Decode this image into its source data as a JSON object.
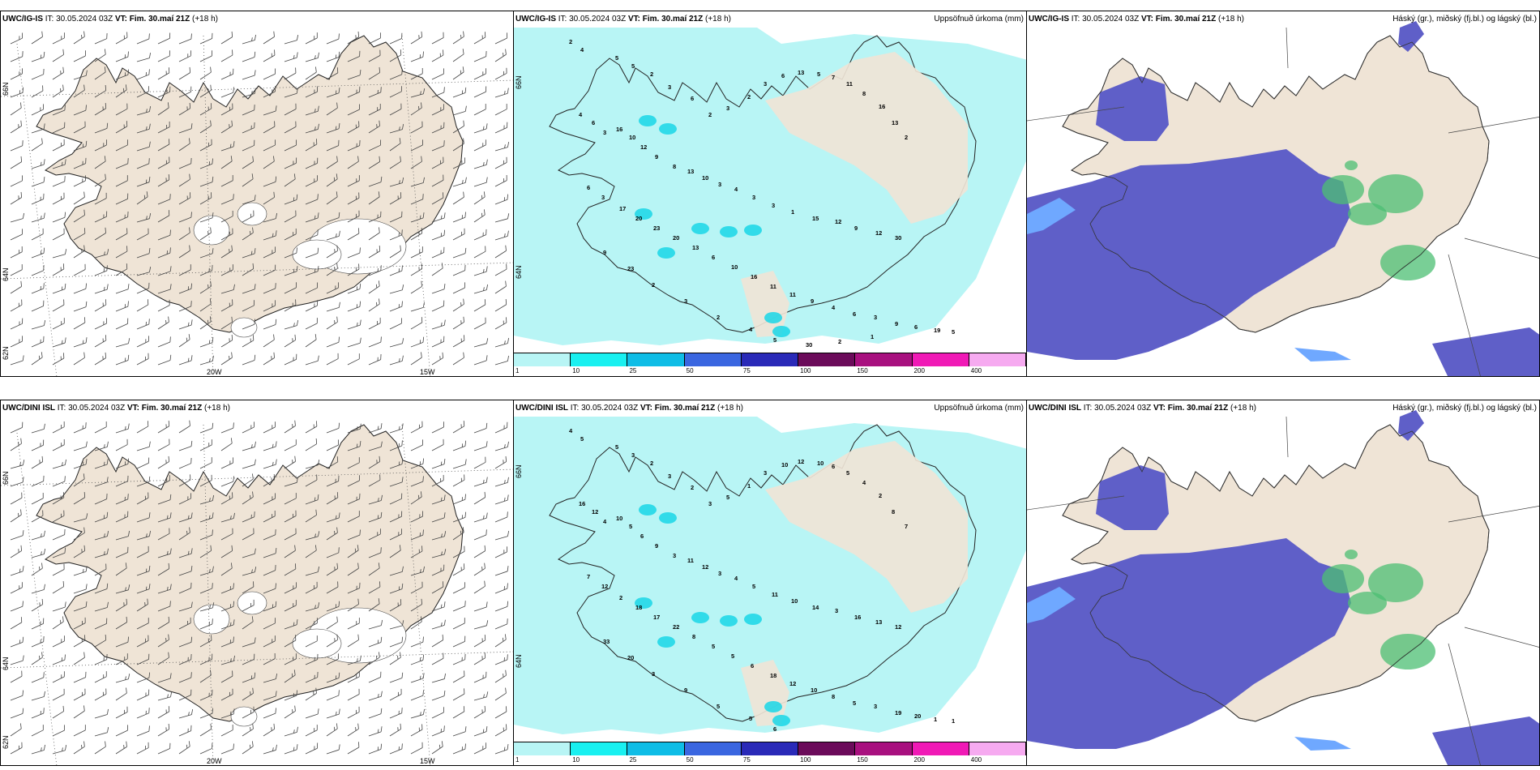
{
  "panels": {
    "top": {
      "model": "UWC/IG-IS",
      "it_label": "IT:",
      "it_value": "30.05.2024 03Z",
      "vt_label": "VT:",
      "vt_value": "Fim. 30.maí 21Z",
      "lead": "(+18 h)"
    },
    "bottom": {
      "model": "UWC/DINI ISL",
      "it_label": "IT:",
      "it_value": "30.05.2024 03Z",
      "vt_label": "VT:",
      "vt_value": "Fim. 30.maí 21Z",
      "lead": "(+18 h)"
    }
  },
  "precip_title": "Uppsöfnuð úrkoma (mm)",
  "cloud_title": "Háský (gr.), miðský (fj.bl.) og lágský (bl.)",
  "wind_axis": {
    "lon_labels": [
      "20W",
      "15W"
    ],
    "lat_labels": [
      "66N",
      "64N",
      "62N"
    ]
  },
  "precip_axis": {
    "lat_labels": [
      "66N",
      "64N"
    ]
  },
  "colorbar": {
    "colors": [
      "#b8f5f5",
      "#19f0f0",
      "#0fbde6",
      "#3a66e0",
      "#2a2ab8",
      "#6b0b5a",
      "#a8107f",
      "#f01ab6",
      "#f6aaf0"
    ],
    "ticks": [
      "1",
      "10",
      "25",
      "50",
      "75",
      "100",
      "150",
      "200",
      "400"
    ]
  },
  "precip_values_top": [
    "2",
    "4",
    "5",
    "5",
    "2",
    "3",
    "6",
    "2",
    "3",
    "2",
    "3",
    "6",
    "13",
    "5",
    "7",
    "11",
    "8",
    "16",
    "13",
    "2",
    "4",
    "6",
    "3",
    "16",
    "10",
    "12",
    "9",
    "8",
    "13",
    "10",
    "3",
    "4",
    "3",
    "3",
    "1",
    "15",
    "12",
    "9",
    "12",
    "30",
    "6",
    "3",
    "17",
    "20",
    "23",
    "20",
    "13",
    "6",
    "10",
    "16",
    "11",
    "11",
    "9",
    "4",
    "6",
    "3",
    "9",
    "6",
    "19",
    "5",
    "9",
    "23",
    "2",
    "3",
    "2",
    "4",
    "5",
    "30",
    "2",
    "1"
  ],
  "precip_values_bottom": [
    "4",
    "5",
    "5",
    "3",
    "2",
    "3",
    "2",
    "3",
    "5",
    "1",
    "3",
    "10",
    "12",
    "10",
    "6",
    "5",
    "4",
    "2",
    "8",
    "7",
    "16",
    "12",
    "4",
    "10",
    "5",
    "6",
    "9",
    "3",
    "11",
    "12",
    "3",
    "4",
    "5",
    "11",
    "10",
    "14",
    "3",
    "16",
    "13",
    "12",
    "7",
    "12",
    "2",
    "18",
    "17",
    "22",
    "8",
    "5",
    "5",
    "6",
    "18",
    "12",
    "10",
    "8",
    "5",
    "3",
    "19",
    "20",
    "1",
    "1",
    "33",
    "20",
    "3",
    "9",
    "5",
    "5",
    "6"
  ],
  "colors": {
    "land": "#efe4d6",
    "precip_light": "#b8f5f5",
    "cloud_low": "#5f5fc8",
    "cloud_mid": "#6fa8ff",
    "cloud_high": "#4cbf73"
  }
}
